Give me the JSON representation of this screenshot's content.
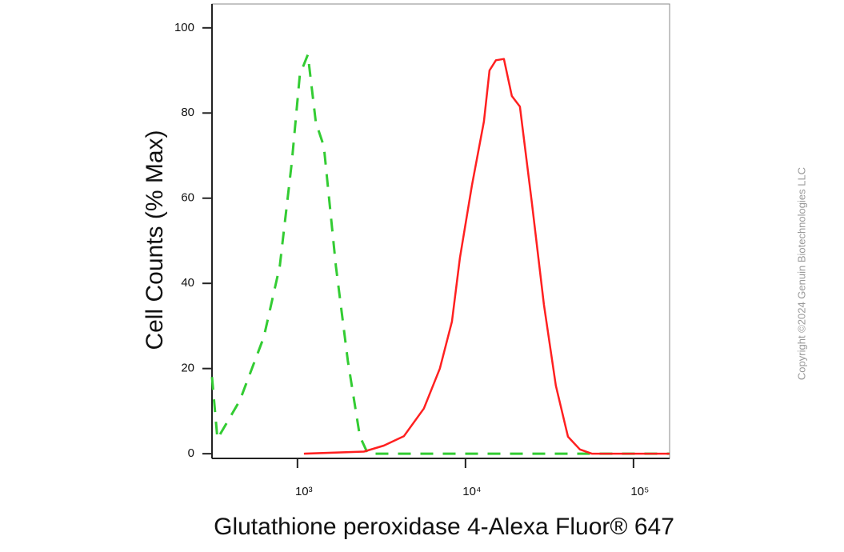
{
  "chart_data": {
    "type": "line",
    "ylabel": "Cell Counts (% Max)",
    "xlabel": "Glutathione peroxidase 4-Alexa Fluor® 647",
    "note": "Copyright ©2024 Genuin Biotechnologies LLC",
    "xscale": "log",
    "xlim": [
      310,
      164000
    ],
    "ylim": [
      -1.1,
      105.6
    ],
    "xticks": [
      {
        "value": 1000,
        "label": "10³"
      },
      {
        "value": 10000,
        "label": "10⁴"
      },
      {
        "value": 100000,
        "label": "10⁵"
      }
    ],
    "yticks": [
      0,
      20,
      40,
      60,
      80,
      100
    ],
    "series": [
      {
        "color": "#33cc33",
        "linestyle": "dashed",
        "x": [
          310,
          334,
          454,
          631,
          785,
          926,
          1033,
          1153,
          1287,
          1436,
          1693,
          1995,
          2351,
          2624,
          36470,
          164000
        ],
        "values": [
          18,
          3.5,
          12.5,
          27.4,
          44,
          68.5,
          89,
          93.7,
          77.8,
          72.2,
          44,
          21.8,
          4.1,
          0,
          0,
          0
        ]
      },
      {
        "color": "#ff2020",
        "linestyle": "solid",
        "x": [
          1092,
          2484,
          3268,
          4297,
          5650,
          7040,
          8300,
          9270,
          10920,
          12880,
          13900,
          15170,
          16940,
          18880,
          21080,
          24840,
          29300,
          34510,
          40740,
          47970,
          56490,
          164000
        ],
        "values": [
          0,
          0.5,
          1.9,
          4.1,
          10.6,
          20,
          31,
          46,
          63,
          78,
          90,
          92.4,
          92.7,
          84,
          81.5,
          59,
          35,
          16,
          4,
          1,
          0,
          0
        ]
      }
    ]
  }
}
